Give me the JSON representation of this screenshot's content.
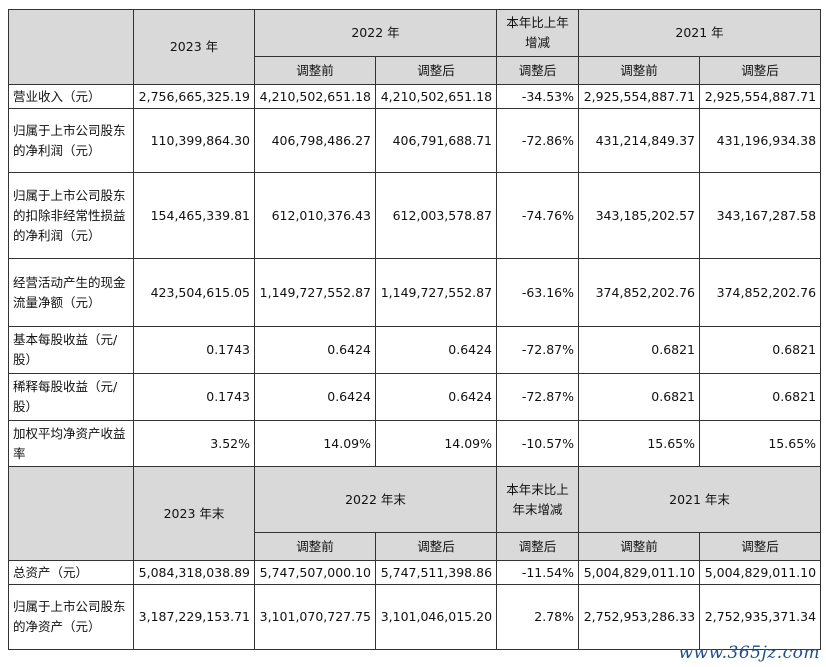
{
  "header1": {
    "year2023": "2023 年",
    "year2022": "2022 年",
    "change": "本年比上年增减",
    "year2021": "2021 年",
    "before": "调整前",
    "after": "调整后",
    "after_change": "调整后"
  },
  "rows1": [
    {
      "label": "营业收入（元）",
      "v2023": "2,756,665,325.19",
      "v2022b": "4,210,502,651.18",
      "v2022a": "4,210,502,651.18",
      "chg": "-34.53%",
      "v2021b": "2,925,554,887.71",
      "v2021a": "2,925,554,887.71"
    },
    {
      "label": "归属于上市公司股东的净利润（元）",
      "v2023": "110,399,864.30",
      "v2022b": "406,798,486.27",
      "v2022a": "406,791,688.71",
      "chg": "-72.86%",
      "v2021b": "431,214,849.37",
      "v2021a": "431,196,934.38"
    },
    {
      "label": "归属于上市公司股东的扣除非经常性损益的净利润（元）",
      "v2023": "154,465,339.81",
      "v2022b": "612,010,376.43",
      "v2022a": "612,003,578.87",
      "chg": "-74.76%",
      "v2021b": "343,185,202.57",
      "v2021a": "343,167,287.58"
    },
    {
      "label": "经营活动产生的现金流量净额（元）",
      "v2023": "423,504,615.05",
      "v2022b": "1,149,727,552.87",
      "v2022a": "1,149,727,552.87",
      "chg": "-63.16%",
      "v2021b": "374,852,202.76",
      "v2021a": "374,852,202.76"
    },
    {
      "label": "基本每股收益（元/股）",
      "v2023": "0.1743",
      "v2022b": "0.6424",
      "v2022a": "0.6424",
      "chg": "-72.87%",
      "v2021b": "0.6821",
      "v2021a": "0.6821"
    },
    {
      "label": "稀释每股收益（元/股）",
      "v2023": "0.1743",
      "v2022b": "0.6424",
      "v2022a": "0.6424",
      "chg": "-72.87%",
      "v2021b": "0.6821",
      "v2021a": "0.6821"
    },
    {
      "label": "加权平均净资产收益率",
      "v2023": "3.52%",
      "v2022b": "14.09%",
      "v2022a": "14.09%",
      "chg": "-10.57%",
      "v2021b": "15.65%",
      "v2021a": "15.65%"
    }
  ],
  "header2": {
    "year2023": "2023 年末",
    "year2022": "2022 年末",
    "change": "本年末比上年末增减",
    "year2021": "2021 年末",
    "before": "调整前",
    "after": "调整后",
    "after_change": "调整后"
  },
  "rows2": [
    {
      "label": "总资产（元）",
      "v2023": "5,084,318,038.89",
      "v2022b": "5,747,507,000.10",
      "v2022a": "5,747,511,398.86",
      "chg": "-11.54%",
      "v2021b": "5,004,829,011.10",
      "v2021a": "5,004,829,011.10"
    },
    {
      "label": "归属于上市公司股东的净资产（元）",
      "v2023": "3,187,229,153.71",
      "v2022b": "3,101,070,727.75",
      "v2022a": "3,101,046,015.20",
      "chg": "2.78%",
      "v2021b": "2,752,953,286.33",
      "v2021a": "2,752,935,371.34"
    }
  ],
  "watermark": "www.365jz.com"
}
